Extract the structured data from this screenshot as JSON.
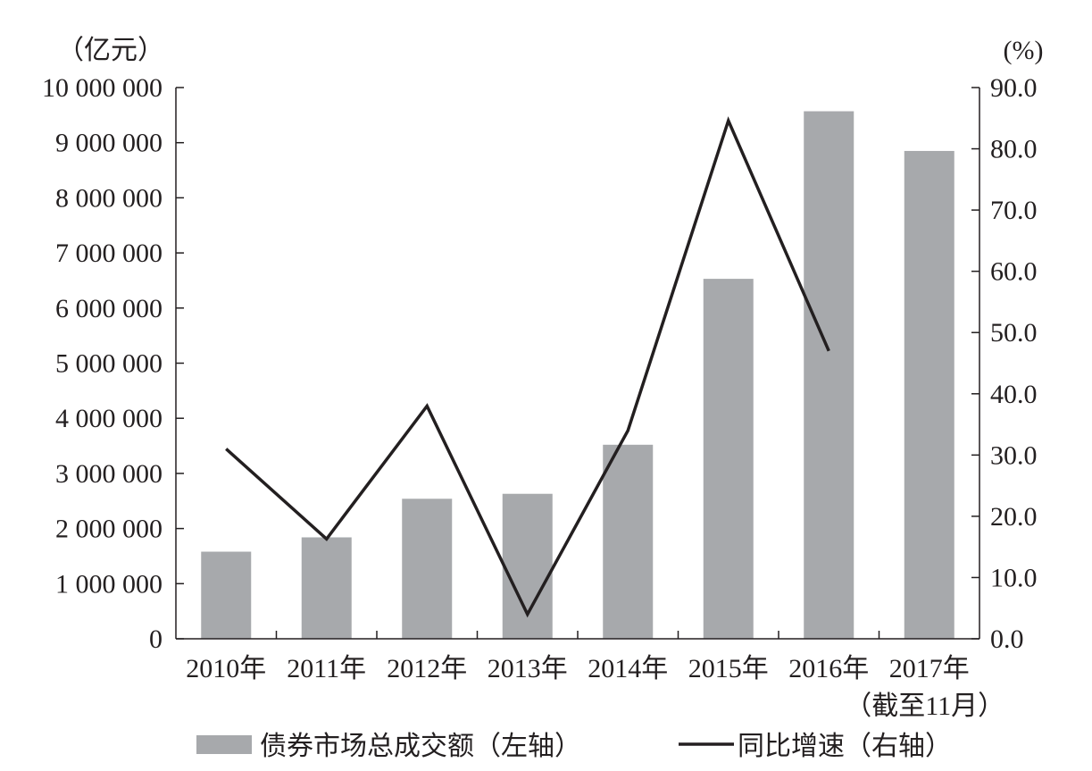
{
  "chart_data": {
    "type": "bar",
    "categories": [
      "2010年",
      "2011年",
      "2012年",
      "2013年",
      "2014年",
      "2015年",
      "2016年",
      "2017年"
    ],
    "category_sublabels": [
      "",
      "",
      "",
      "",
      "",
      "",
      "",
      "（截至11月）"
    ],
    "series": [
      {
        "name": "债券市场总成交额（左轴）",
        "type": "bar",
        "axis": "left",
        "values": [
          1580000,
          1840000,
          2540000,
          2630000,
          3520000,
          6530000,
          9570000,
          8850000
        ]
      },
      {
        "name": "同比增速（右轴）",
        "type": "line",
        "axis": "right",
        "values": [
          31.0,
          16.3,
          38.0,
          4.0,
          34.0,
          84.6,
          47.0,
          null
        ]
      }
    ],
    "y_left": {
      "unit": "（亿元）",
      "range": [
        0,
        10000000
      ],
      "ticks": [
        0,
        1000000,
        2000000,
        3000000,
        4000000,
        5000000,
        6000000,
        7000000,
        8000000,
        9000000,
        10000000
      ],
      "tick_labels": [
        "0",
        "1 000 000",
        "2 000 000",
        "3 000 000",
        "4 000 000",
        "5 000 000",
        "6 000 000",
        "7 000 000",
        "8 000 000",
        "9 000 000",
        "10 000 000"
      ]
    },
    "y_right": {
      "unit": "(%)",
      "range": [
        0,
        90
      ],
      "ticks": [
        0,
        10,
        20,
        30,
        40,
        50,
        60,
        70,
        80,
        90
      ],
      "tick_labels": [
        "0.0",
        "10.0",
        "20.0",
        "30.0",
        "40.0",
        "50.0",
        "60.0",
        "70.0",
        "80.0",
        "90.0"
      ]
    },
    "grid": false,
    "legend_position": "bottom",
    "colors": {
      "bar": "#a7a9ac",
      "line": "#231f20",
      "axis": "#231f20"
    }
  }
}
